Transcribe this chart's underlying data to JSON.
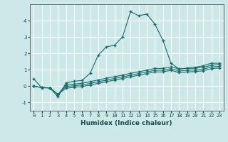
{
  "xlabel": "Humidex (Indice chaleur)",
  "background_color": "#cce8e8",
  "grid_color": "#ffffff",
  "line_color": "#1a6b6b",
  "xlim": [
    -0.5,
    23.5
  ],
  "ylim": [
    -1.5,
    5.0
  ],
  "yticks": [
    -1,
    0,
    1,
    2,
    3,
    4
  ],
  "xticks": [
    0,
    1,
    2,
    3,
    4,
    5,
    6,
    7,
    8,
    9,
    10,
    11,
    12,
    13,
    14,
    15,
    16,
    17,
    18,
    19,
    20,
    21,
    22,
    23
  ],
  "series": [
    {
      "x": [
        0,
        1,
        2,
        3,
        4,
        5,
        6,
        7,
        8,
        9,
        10,
        11,
        12,
        13,
        14,
        15,
        16,
        17,
        18,
        19,
        20,
        21,
        22,
        23
      ],
      "y": [
        0.45,
        -0.1,
        -0.1,
        -0.65,
        0.2,
        0.3,
        0.35,
        0.8,
        1.9,
        2.4,
        2.5,
        3.0,
        4.55,
        4.3,
        4.4,
        3.8,
        2.8,
        1.4,
        1.05,
        1.1,
        1.15,
        1.25,
        1.4,
        1.4
      ]
    },
    {
      "x": [
        0,
        1,
        2,
        3,
        4,
        5,
        6,
        7,
        8,
        9,
        10,
        11,
        12,
        13,
        14,
        15,
        16,
        17,
        18,
        19,
        20,
        21,
        22,
        23
      ],
      "y": [
        0.0,
        -0.08,
        -0.1,
        -0.5,
        0.08,
        0.13,
        0.18,
        0.28,
        0.38,
        0.48,
        0.58,
        0.68,
        0.78,
        0.88,
        0.98,
        1.08,
        1.08,
        1.18,
        1.05,
        1.08,
        1.1,
        1.15,
        1.28,
        1.32
      ]
    },
    {
      "x": [
        0,
        1,
        2,
        3,
        4,
        5,
        6,
        7,
        8,
        9,
        10,
        11,
        12,
        13,
        14,
        15,
        16,
        17,
        18,
        19,
        20,
        21,
        22,
        23
      ],
      "y": [
        0.0,
        -0.08,
        -0.1,
        -0.5,
        -0.02,
        0.03,
        0.08,
        0.17,
        0.27,
        0.37,
        0.47,
        0.57,
        0.67,
        0.77,
        0.87,
        0.97,
        0.97,
        1.07,
        0.93,
        0.97,
        0.99,
        1.04,
        1.17,
        1.21
      ]
    },
    {
      "x": [
        0,
        1,
        2,
        3,
        4,
        5,
        6,
        7,
        8,
        9,
        10,
        11,
        12,
        13,
        14,
        15,
        16,
        17,
        18,
        19,
        20,
        21,
        22,
        23
      ],
      "y": [
        0.0,
        -0.08,
        -0.1,
        -0.5,
        -0.12,
        -0.07,
        -0.02,
        0.07,
        0.17,
        0.27,
        0.37,
        0.47,
        0.57,
        0.67,
        0.77,
        0.87,
        0.87,
        0.97,
        0.83,
        0.87,
        0.89,
        0.94,
        1.07,
        1.11
      ]
    }
  ]
}
